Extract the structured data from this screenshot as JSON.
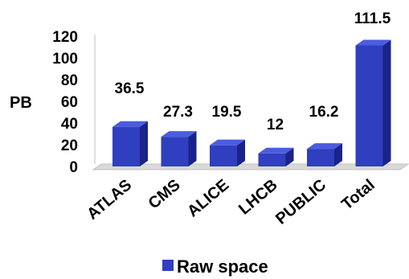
{
  "chart_data": {
    "type": "bar",
    "categories": [
      "ATLAS",
      "CMS",
      "ALICE",
      "LHCB",
      "PUBLIC",
      "Total"
    ],
    "series": [
      {
        "name": "Raw space",
        "values": [
          36.5,
          27.3,
          19.5,
          12,
          16.2,
          111.5
        ]
      }
    ],
    "data_labels": [
      "36.5",
      "27.3",
      "19.5",
      "12",
      "16.2",
      "111.5"
    ],
    "ylabel": "PB",
    "ylim": [
      0,
      120
    ],
    "yticks": [
      0,
      20,
      40,
      60,
      80,
      100,
      120
    ],
    "grid": false,
    "legend": "bottom",
    "three_d": true,
    "colors": {
      "bar_front": "#2f3fbf",
      "bar_side": "#1a238a",
      "bar_top": "#4b5ce0",
      "floor": "#d9d9d9"
    }
  }
}
